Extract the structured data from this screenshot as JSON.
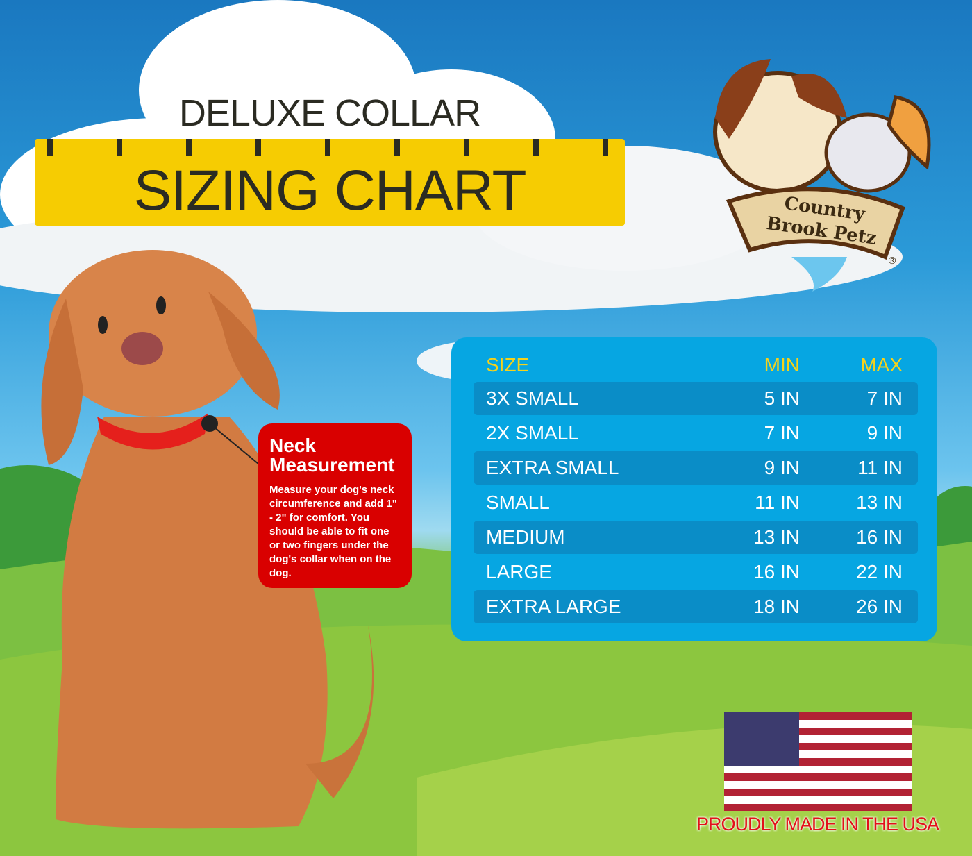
{
  "header": {
    "subtitle": "DELUXE COLLAR",
    "title": "SIZING CHART"
  },
  "brand": {
    "logo_text": "Country Brook Petz",
    "registered": "®"
  },
  "sizing_table": {
    "columns": [
      "SIZE",
      "MIN",
      "MAX"
    ],
    "rows": [
      {
        "size": "3X SMALL",
        "min": "5 IN",
        "max": "7 IN"
      },
      {
        "size": "2X SMALL",
        "min": "7 IN",
        "max": "9 IN"
      },
      {
        "size": "EXTRA SMALL",
        "min": "9 IN",
        "max": "11 IN"
      },
      {
        "size": "SMALL",
        "min": "11 IN",
        "max": "13 IN"
      },
      {
        "size": "MEDIUM",
        "min": "13 IN",
        "max": "16 IN"
      },
      {
        "size": "LARGE",
        "min": "16 IN",
        "max": "22 IN"
      },
      {
        "size": "EXTRA LARGE",
        "min": "18 IN",
        "max": "26 IN"
      }
    ]
  },
  "neck_callout": {
    "title_line1": "Neck",
    "title_line2": "Measurement",
    "body": "Measure your dog's neck circumference and add 1\" - 2\" for comfort. You should be able to fit one or two fingers under the dog's collar when on the dog."
  },
  "footer": {
    "made_in": "PROUDLY MADE IN THE USA"
  },
  "colors": {
    "ruler": "#f6cc02",
    "table_bg": "#06a6e2",
    "table_stripe": "#0a8dc7",
    "header_text": "#f6d21a",
    "callout": "#d90000"
  }
}
